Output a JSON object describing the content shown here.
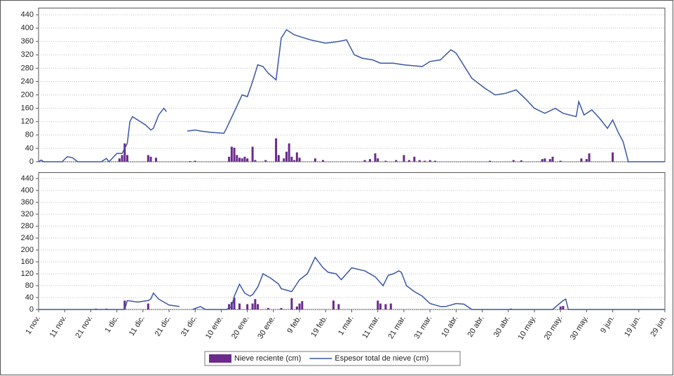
{
  "chart_data": [
    {
      "type": "combo",
      "xlim": [
        0,
        240
      ],
      "ylim": [
        0,
        460
      ],
      "yticks": [
        0,
        40,
        80,
        120,
        160,
        200,
        240,
        280,
        320,
        360,
        400,
        440
      ],
      "grid": true,
      "series": [
        {
          "name": "Nieve reciente (cm)",
          "type": "bar",
          "color": "#6b2a8c",
          "x": [
            31,
            32,
            33,
            34,
            42,
            43,
            45,
            58,
            60,
            73,
            74,
            75,
            76,
            77,
            78,
            79,
            80,
            82,
            83,
            87,
            91,
            92,
            94,
            95,
            96,
            97,
            98,
            99,
            100,
            106,
            109,
            125,
            127,
            129,
            130,
            133,
            137,
            140,
            142,
            144,
            146,
            148,
            150,
            152,
            173,
            182,
            185,
            193,
            194,
            196,
            197,
            200,
            208,
            210,
            211,
            220
          ],
          "values": [
            10,
            20,
            55,
            20,
            20,
            15,
            12,
            2,
            3,
            15,
            45,
            42,
            20,
            12,
            10,
            15,
            10,
            45,
            5,
            5,
            70,
            20,
            10,
            30,
            55,
            15,
            5,
            28,
            12,
            10,
            5,
            5,
            8,
            25,
            10,
            3,
            5,
            20,
            5,
            15,
            5,
            3,
            5,
            3,
            3,
            5,
            4,
            8,
            10,
            8,
            15,
            3,
            10,
            8,
            25,
            28
          ]
        },
        {
          "name": "Espesor total de nieve (cm)",
          "type": "line",
          "color": "#3a56a6",
          "x": [
            0,
            1,
            2,
            9,
            11,
            13,
            15,
            24,
            26,
            27,
            30,
            32,
            34,
            35,
            36,
            38,
            41,
            43,
            44,
            46,
            48,
            49,
            52,
            57,
            60,
            62,
            66,
            71,
            72,
            75,
            78,
            80,
            82,
            84,
            86,
            88,
            91,
            93,
            95,
            98,
            104,
            110,
            115,
            118,
            121,
            124,
            128,
            131,
            136,
            140,
            147,
            150,
            154,
            158,
            160,
            166,
            171,
            175,
            179,
            183,
            187,
            190,
            194,
            198,
            201,
            206,
            207,
            209,
            212,
            215,
            218,
            220,
            222,
            224,
            226,
            232,
            240
          ],
          "values": [
            0,
            5,
            0,
            0,
            15,
            12,
            0,
            0,
            10,
            0,
            25,
            25,
            55,
            120,
            135,
            125,
            110,
            95,
            100,
            140,
            160,
            150,
            null,
            92,
            95,
            92,
            88,
            85,
            100,
            150,
            200,
            195,
            240,
            290,
            285,
            265,
            245,
            370,
            395,
            380,
            365,
            355,
            360,
            365,
            320,
            310,
            305,
            295,
            295,
            290,
            285,
            300,
            305,
            335,
            325,
            250,
            220,
            200,
            205,
            215,
            185,
            160,
            145,
            160,
            145,
            135,
            180,
            140,
            155,
            130,
            100,
            125,
            90,
            60,
            0,
            0,
            0
          ]
        }
      ]
    },
    {
      "type": "combo",
      "xlim": [
        0,
        240
      ],
      "ylim": [
        0,
        460
      ],
      "yticks": [
        0,
        40,
        80,
        120,
        160,
        200,
        240,
        280,
        320,
        360,
        400,
        440
      ],
      "xticks": [
        {
          "value": 0,
          "label": "1 nov."
        },
        {
          "value": 10,
          "label": "11 nov."
        },
        {
          "value": 20,
          "label": "21 nov."
        },
        {
          "value": 30,
          "label": "1 dic."
        },
        {
          "value": 40,
          "label": "11 dic."
        },
        {
          "value": 50,
          "label": "21 dic."
        },
        {
          "value": 60,
          "label": "31 dic."
        },
        {
          "value": 70,
          "label": "10 ene."
        },
        {
          "value": 80,
          "label": "20 ene."
        },
        {
          "value": 90,
          "label": "30 ene."
        },
        {
          "value": 100,
          "label": "9 feb."
        },
        {
          "value": 110,
          "label": "19 feb."
        },
        {
          "value": 120,
          "label": "1 mar."
        },
        {
          "value": 130,
          "label": "11 mar."
        },
        {
          "value": 140,
          "label": "21 mar."
        },
        {
          "value": 150,
          "label": "31 mar."
        },
        {
          "value": 160,
          "label": "10 abr."
        },
        {
          "value": 170,
          "label": "20 abr."
        },
        {
          "value": 180,
          "label": "30 abr."
        },
        {
          "value": 190,
          "label": "10 may."
        },
        {
          "value": 200,
          "label": "20 may."
        },
        {
          "value": 210,
          "label": "30 may."
        },
        {
          "value": 220,
          "label": "9 jun."
        },
        {
          "value": 230,
          "label": "19 jun."
        },
        {
          "value": 240,
          "label": "29 jun."
        }
      ],
      "grid": true,
      "series": [
        {
          "name": "Nieve reciente (cm)",
          "type": "bar",
          "color": "#6b2a8c",
          "x": [
            22,
            26,
            33,
            42,
            73,
            74,
            75,
            77,
            80,
            82,
            83,
            84,
            88,
            93,
            97,
            99,
            100,
            101,
            113,
            115,
            130,
            131,
            133,
            135,
            181,
            200,
            201
          ],
          "values": [
            3,
            3,
            30,
            20,
            18,
            25,
            40,
            20,
            18,
            20,
            35,
            18,
            5,
            5,
            38,
            10,
            20,
            28,
            30,
            18,
            30,
            20,
            18,
            20,
            3,
            10,
            12
          ]
        },
        {
          "name": "Espesor total de nieve (cm)",
          "type": "line",
          "color": "#3a56a6",
          "x": [
            0,
            33,
            34,
            38,
            42,
            43,
            44,
            46,
            48,
            50,
            54,
            56,
            59,
            62,
            64,
            72,
            74,
            75,
            77,
            79,
            81,
            82,
            84,
            86,
            89,
            92,
            93,
            95,
            97,
            100,
            103,
            106,
            109,
            111,
            114,
            116,
            120,
            125,
            129,
            131,
            132,
            134,
            136,
            138,
            139,
            141,
            144,
            147,
            150,
            154,
            156,
            160,
            163,
            166,
            197,
            199,
            201,
            202,
            203,
            240
          ],
          "values": [
            0,
            0,
            30,
            25,
            30,
            35,
            55,
            35,
            25,
            15,
            10,
            null,
            0,
            10,
            0,
            0,
            10,
            45,
            85,
            55,
            45,
            50,
            75,
            120,
            105,
            85,
            70,
            65,
            60,
            100,
            120,
            175,
            140,
            125,
            120,
            100,
            140,
            130,
            110,
            90,
            80,
            115,
            120,
            130,
            125,
            80,
            60,
            45,
            20,
            10,
            10,
            20,
            18,
            0,
            0,
            15,
            30,
            35,
            0,
            0
          ]
        }
      ]
    }
  ]
}
